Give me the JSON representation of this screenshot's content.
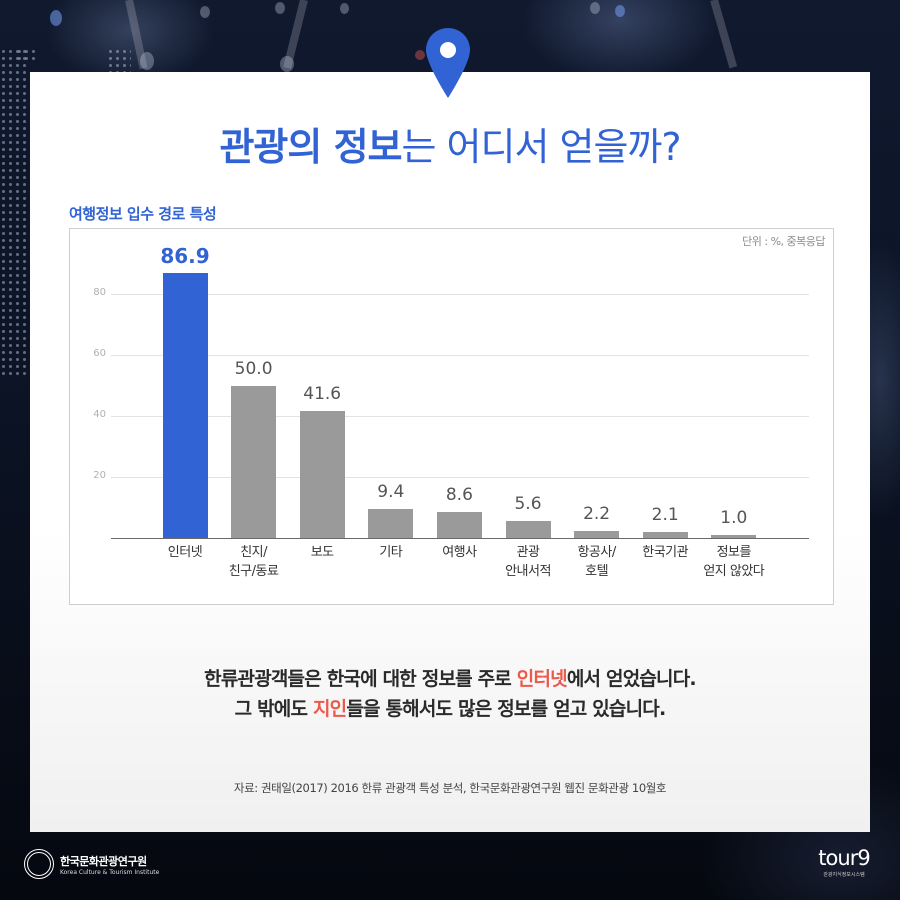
{
  "header": {
    "title_bold": "관광의 정보",
    "title_light": "는 어디서 얻을까?",
    "pin_icon": "location-pin-icon"
  },
  "chart": {
    "title": "여행정보 입수 경로 특성",
    "unit_note": "단위 : %, 중복응답"
  },
  "chart_data": {
    "type": "bar",
    "title": "여행정보 입수 경로 특성",
    "subtitle": "단위 : %, 중복응답",
    "xlabel": "",
    "ylabel": "%",
    "ylim": [
      0,
      90
    ],
    "yticks": [
      20,
      40,
      60,
      80
    ],
    "grid": true,
    "legend": "none",
    "categories": [
      "인터넷",
      "친지/친구/동료",
      "보도",
      "기타",
      "여행사",
      "관광 안내서적",
      "항공사/호텔",
      "한국기관",
      "정보를 얻지 않았다"
    ],
    "category_lines": [
      [
        "인터넷"
      ],
      [
        "친지/",
        "친구/동료"
      ],
      [
        "보도"
      ],
      [
        "기타"
      ],
      [
        "여행사"
      ],
      [
        "관광",
        "안내서적"
      ],
      [
        "항공사/",
        "호텔"
      ],
      [
        "한국기관"
      ],
      [
        "정보를",
        "얻지 않았다"
      ]
    ],
    "values": [
      86.9,
      50.0,
      41.6,
      9.4,
      8.6,
      5.6,
      2.2,
      2.1,
      1.0
    ],
    "value_labels": [
      "86.9",
      "50.0",
      "41.6",
      "9.4",
      "8.6",
      "5.6",
      "2.2",
      "2.1",
      "1.0"
    ],
    "highlight_index": 0,
    "colors": {
      "highlight": "#3163d4",
      "default": "#9a9a9a"
    }
  },
  "summary": {
    "line1_pre": "한류관광객들은 한국에 대한 정보를 주로 ",
    "line1_emph": "인터넷",
    "line1_post": "에서 얻었습니다.",
    "line2_pre": "그 밖에도 ",
    "line2_emph": "지인",
    "line2_post": "들을 통해서도 많은 정보를 얻고 있습니다."
  },
  "source": "자료: 권태일(2017) 2016 한류 관광객 특성 분석, 한국문화관광연구원 웹진 문화관광 10월호",
  "footer": {
    "left_logo_ko": "한국문화관광연구원",
    "left_logo_en": "Korea Culture & Tourism Institute",
    "right_logo_mark": "tour9",
    "right_logo_sub": "관광지식정보시스템"
  },
  "colors": {
    "accent_blue": "#3163d4",
    "emphasis_red": "#ec5a4c",
    "bar_gray": "#9a9a9a"
  }
}
